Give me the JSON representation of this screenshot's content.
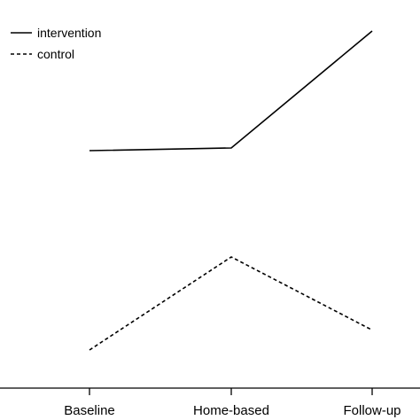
{
  "chart_data": {
    "type": "line",
    "categories": [
      "Baseline",
      "Home-based",
      "Follow-up"
    ],
    "series": [
      {
        "name": "intervention",
        "values": [
          4.0,
          4.06,
          6.7
        ],
        "style": "solid",
        "color": "#000000"
      },
      {
        "name": "control",
        "values": [
          -0.5,
          1.6,
          -0.05
        ],
        "style": "dashed",
        "color": "#000000"
      }
    ],
    "ylim": [
      -1.0,
      7.0
    ],
    "grid": false,
    "legend_position": "top-left",
    "title": "",
    "xlabel": "",
    "ylabel": ""
  }
}
